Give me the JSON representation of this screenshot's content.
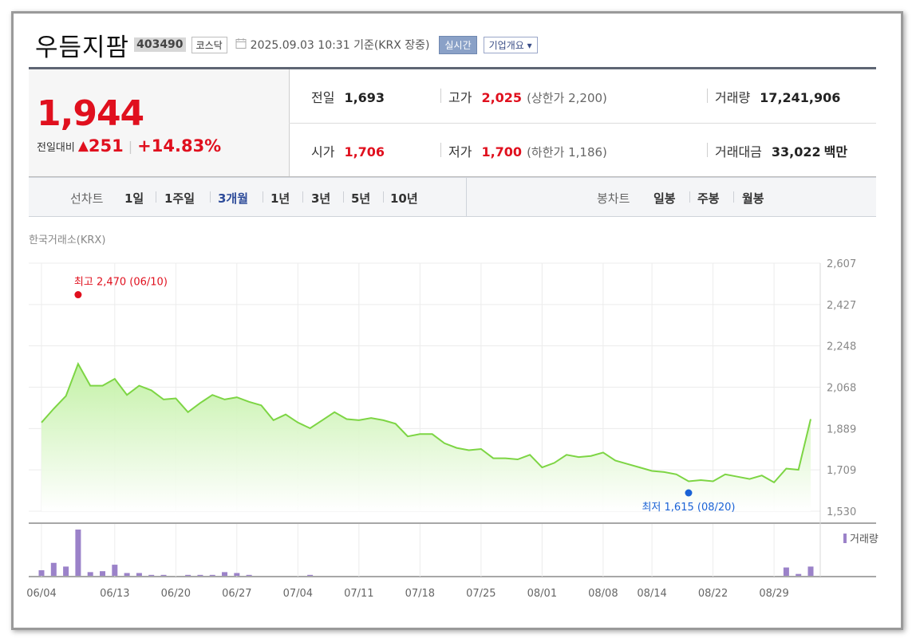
{
  "header": {
    "name": "우듬지팜",
    "code": "403490",
    "market": "코스닥",
    "as_of": "2025.09.03 10:31 기준(KRX 장중)",
    "realtime": "실시간",
    "company_info": "기업개요 ▾"
  },
  "price": {
    "current": "1,944",
    "diff_label": "전일대비",
    "diff_value": "251",
    "diff_pct": "+14.83%"
  },
  "stats": {
    "prev_close": {
      "label": "전일",
      "value": "1,693"
    },
    "high": {
      "label": "고가",
      "value": "2,025",
      "note": "(상한가 2,200)"
    },
    "volume": {
      "label": "거래량",
      "value": "17,241,906"
    },
    "open": {
      "label": "시가",
      "value": "1,706"
    },
    "low": {
      "label": "저가",
      "value": "1,700",
      "note": "(하한가 1,186)"
    },
    "amount": {
      "label": "거래대금",
      "value": "33,022",
      "unit": "백만"
    }
  },
  "tabs": {
    "line_label": "선차트",
    "line_periods": [
      "1일",
      "1주일",
      "3개월",
      "1년",
      "3년",
      "5년",
      "10년"
    ],
    "active_period": "3개월",
    "candle_label": "봉차트",
    "candle_periods": [
      "일봉",
      "주봉",
      "월봉"
    ]
  },
  "source": "한국거래소(KRX)",
  "colors": {
    "red": "#e0101e",
    "blue": "#1a62d6",
    "line": "#7dd544",
    "volume": "#9b82c9"
  },
  "chart_data": {
    "type": "area",
    "y_ticks": [
      "2,607",
      "2,427",
      "2,248",
      "2,068",
      "1,889",
      "1,709",
      "1,530"
    ],
    "ylim": [
      1530,
      2607
    ],
    "x_ticks": [
      "06/04",
      "06/13",
      "06/20",
      "06/27",
      "07/04",
      "07/11",
      "07/18",
      "07/25",
      "08/01",
      "08/08",
      "08/14",
      "08/22",
      "08/29"
    ],
    "max_label": "최고 2,470 (06/10)",
    "min_label": "최저 1,615 (08/20)",
    "max_point": {
      "date": "06/10",
      "value": 2470
    },
    "min_point": {
      "date": "08/20",
      "value": 1615
    },
    "volume_label": "거래량",
    "series": [
      {
        "values": [
          1915,
          1975,
          2030,
          2170,
          2075,
          2075,
          2105,
          2035,
          2075,
          2055,
          2015,
          2020,
          1960,
          2000,
          2035,
          2015,
          2025,
          2005,
          1990,
          1925,
          1950,
          1915,
          1890,
          1925,
          1960,
          1930,
          1925,
          1935,
          1925,
          1910,
          1855,
          1865,
          1865,
          1825,
          1805,
          1795,
          1800,
          1760,
          1760,
          1755,
          1775,
          1720,
          1740,
          1775,
          1765,
          1770,
          1785,
          1750,
          1735,
          1720,
          1705,
          1700,
          1690,
          1660,
          1665,
          1660,
          1690,
          1680,
          1670,
          1685,
          1655,
          1715,
          1710,
          1930
        ]
      }
    ],
    "volume_values": [
      6,
      14,
      10,
      50,
      4,
      5,
      12,
      3,
      3,
      1,
      1,
      0,
      1,
      1,
      1,
      4,
      3,
      1,
      0,
      0,
      0,
      0,
      1,
      0,
      0,
      0,
      0,
      0,
      0,
      0,
      0,
      0,
      0,
      0,
      0,
      0,
      0,
      0,
      0,
      0,
      0,
      0,
      0,
      0,
      0,
      0,
      0,
      0,
      0,
      0,
      0,
      0,
      0,
      0,
      0,
      0,
      0,
      0,
      0,
      0,
      0,
      9,
      2,
      10
    ]
  }
}
